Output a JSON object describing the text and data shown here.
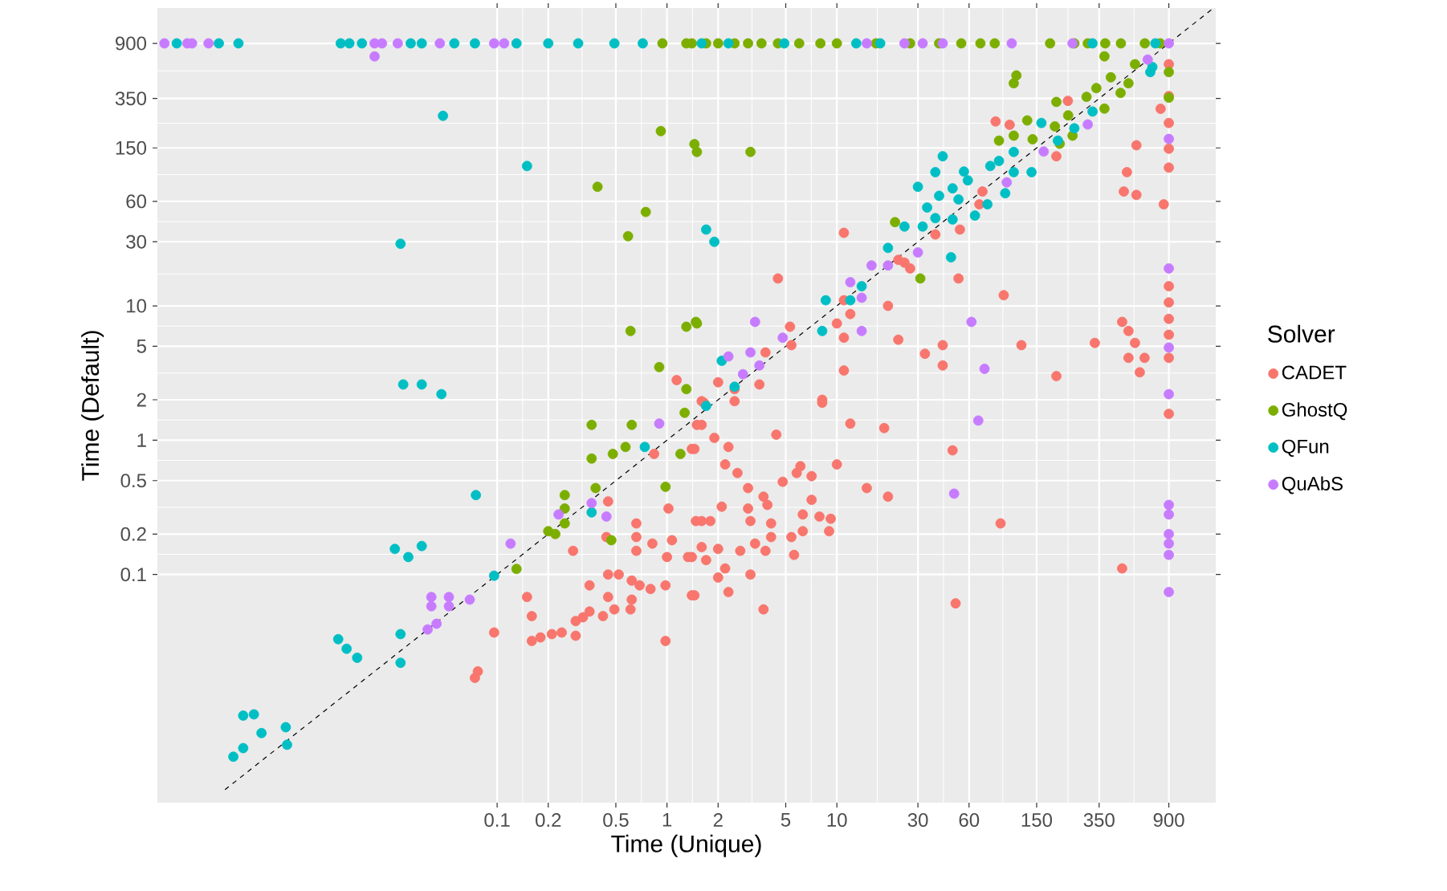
{
  "chart_data": {
    "type": "scatter",
    "xlabel": "Time (Unique)",
    "ylabel": "Time (Default)",
    "legend_title": "Solver",
    "log": "xy",
    "grid": true,
    "legend": "right",
    "marker": "circle",
    "xlim": [
      0.001,
      1700
    ],
    "ylim": [
      0.002,
      1650
    ],
    "xticks": [
      0.1,
      0.2,
      0.5,
      1,
      2,
      5,
      10,
      30,
      60,
      150,
      350,
      900
    ],
    "yticks": [
      0.1,
      0.2,
      0.5,
      1,
      2,
      5,
      10,
      30,
      60,
      150,
      350,
      900
    ],
    "series": [
      {
        "name": "CADET",
        "color": "#f8766d",
        "x": [
          900,
          900,
          805,
          900,
          900,
          900,
          580,
          510,
          489,
          580,
          840,
          229,
          196,
          86,
          104,
          11,
          38,
          53,
          72,
          69,
          23,
          27,
          52,
          4.5,
          20,
          96,
          11,
          12,
          10,
          11,
          5.3,
          5.4,
          3.8,
          23,
          42,
          33,
          42,
          122,
          330,
          196,
          11,
          8.2,
          478,
          521,
          569,
          648,
          607,
          521,
          900,
          900,
          900,
          900,
          900,
          2.0,
          2.5,
          3.5,
          1.6,
          25,
          1.5,
          0.84,
          1.4,
          1.48,
          0.45,
          1.02,
          0.44,
          0.66,
          0.66,
          0.66,
          0.82,
          0.28,
          1.07,
          1.0,
          1.33,
          0.45,
          0.52,
          0.62,
          0.69,
          0.8,
          0.98,
          0.35,
          0.45,
          0.62,
          1.4,
          0.35,
          0.42,
          0.49,
          0.61,
          0.29,
          0.32,
          0.29,
          0.24,
          0.21,
          0.18,
          0.16,
          0.98,
          0.15,
          0.16,
          0.096,
          0.077,
          0.074,
          1.65,
          1.6,
          2.5,
          8.2,
          12,
          19,
          48,
          1.9,
          2.3,
          1.45,
          4.4,
          2.2,
          2.6,
          6.1,
          5.8,
          7.1,
          10,
          3.0,
          3.7,
          4.8,
          3.9,
          3.0,
          2.1,
          7.1,
          6.3,
          15,
          20,
          1.6,
          1.8,
          3.1,
          4.1,
          7.9,
          9.2,
          9.0,
          6.3,
          5.4,
          4.1,
          3.3,
          3.8,
          2.7,
          2.0,
          1.6,
          1.4,
          1.7,
          5.6,
          3.1,
          2.2,
          2.0,
          2.3,
          1.45,
          3.7,
          92,
          478,
          50,
          900,
          1.14
        ],
        "values": [
          630,
          365,
          293,
          230,
          148,
          107,
          157,
          99,
          71,
          67,
          57,
          336,
          130,
          236,
          223,
          35,
          34,
          37,
          71,
          57,
          22,
          19,
          16,
          16,
          10,
          12,
          11,
          8.7,
          7.4,
          5.8,
          7.0,
          5.1,
          4.5,
          5.6,
          5.1,
          4.4,
          3.6,
          5.1,
          5.3,
          3.0,
          3.3,
          2.0,
          7.6,
          6.5,
          5.3,
          4.1,
          3.2,
          4.1,
          14,
          10.6,
          8.0,
          6.1,
          4.1,
          2.7,
          2.4,
          2.6,
          1.95,
          21,
          1.3,
          0.79,
          0.86,
          0.25,
          0.35,
          0.31,
          0.19,
          0.24,
          0.19,
          0.15,
          0.17,
          0.15,
          0.18,
          0.135,
          0.135,
          0.1,
          0.1,
          0.09,
          0.083,
          0.078,
          0.083,
          0.083,
          0.068,
          0.065,
          0.07,
          0.053,
          0.049,
          0.055,
          0.055,
          0.045,
          0.048,
          0.035,
          0.037,
          0.036,
          0.034,
          0.032,
          0.032,
          0.068,
          0.049,
          0.037,
          0.019,
          0.017,
          1.9,
          1.3,
          1.95,
          1.9,
          1.33,
          1.23,
          0.84,
          1.04,
          0.89,
          0.86,
          1.1,
          0.66,
          0.57,
          0.64,
          0.57,
          0.54,
          0.66,
          0.44,
          0.38,
          0.49,
          0.33,
          0.31,
          0.32,
          0.36,
          0.28,
          0.44,
          0.38,
          0.25,
          0.25,
          0.25,
          0.24,
          0.27,
          0.26,
          0.21,
          0.21,
          0.19,
          0.19,
          0.17,
          0.15,
          0.15,
          0.155,
          0.16,
          0.135,
          0.128,
          0.14,
          0.1,
          0.111,
          0.095,
          0.074,
          0.07,
          0.055,
          0.24,
          0.111,
          0.061,
          1.57,
          2.8
        ]
      },
      {
        "name": "GhostQ",
        "color": "#7cae00",
        "x": [
          0.94,
          1.3,
          1.4,
          1.7,
          2.0,
          2.5,
          3.0,
          3.6,
          4.5,
          6.0,
          8.0,
          10,
          17,
          27,
          40,
          54,
          70,
          85,
          180,
          250,
          300,
          380,
          470,
          650,
          800,
          0.92,
          1.45,
          1.5,
          3.1,
          0.39,
          0.75,
          0.59,
          0.61,
          1.3,
          1.48,
          0.9,
          1.3,
          0.36,
          0.62,
          1.27,
          0.36,
          0.48,
          0.57,
          1.2,
          0.98,
          0.25,
          0.25,
          0.38,
          0.25,
          0.2,
          0.22,
          0.47,
          0.13,
          22,
          31,
          1.5,
          90,
          110,
          132,
          196,
          230,
          244,
          295,
          337,
          410,
          468,
          376,
          521,
          569,
          376,
          114,
          110,
          900,
          900,
          142,
          192,
          205
        ],
        "values": [
          900,
          900,
          900,
          900,
          900,
          900,
          900,
          900,
          900,
          900,
          900,
          900,
          900,
          900,
          900,
          900,
          900,
          900,
          900,
          900,
          900,
          900,
          900,
          900,
          900,
          200,
          160,
          140,
          140,
          77,
          50,
          33,
          6.5,
          7.0,
          7.6,
          3.5,
          2.4,
          1.3,
          1.3,
          1.6,
          0.73,
          0.79,
          0.89,
          0.79,
          0.45,
          0.39,
          0.31,
          0.44,
          0.24,
          0.21,
          0.2,
          0.18,
          0.11,
          42,
          16,
          7.4,
          170,
          185,
          240,
          330,
          262,
          185,
          360,
          418,
          503,
          385,
          294,
          454,
          630,
          721,
          520,
          454,
          550,
          355,
          174,
          217,
          161
        ]
      },
      {
        "name": "QFun",
        "color": "#00bfc4",
        "x": [
          0.0013,
          0.0023,
          0.003,
          0.012,
          0.0135,
          0.016,
          0.031,
          0.036,
          0.056,
          0.074,
          0.13,
          0.2,
          0.3,
          0.49,
          0.72,
          1.6,
          2.3,
          4.9,
          13,
          18,
          320,
          750,
          0.048,
          0.15,
          0.027,
          0.028,
          0.036,
          0.047,
          0.075,
          0.025,
          0.03,
          0.036,
          0.096,
          0.0116,
          0.013,
          0.015,
          0.027,
          0.027,
          0.0032,
          0.0037,
          0.0041,
          0.0028,
          0.0032,
          0.0057,
          0.0058,
          42,
          30,
          38,
          56,
          59,
          48,
          34,
          40,
          52,
          32,
          38,
          48,
          65,
          77,
          47,
          25,
          20,
          80,
          90,
          110,
          140,
          110,
          98,
          160,
          200,
          250,
          320,
          700,
          720,
          12,
          14,
          8.6,
          8.2,
          2.1,
          2.5,
          1.7,
          1.9,
          0.36,
          0.74,
          1.7
        ],
        "values": [
          900,
          900,
          900,
          900,
          900,
          900,
          900,
          900,
          900,
          900,
          900,
          900,
          900,
          900,
          900,
          900,
          900,
          900,
          900,
          900,
          900,
          900,
          260,
          110,
          29,
          2.6,
          2.6,
          2.2,
          0.39,
          0.155,
          0.135,
          0.163,
          0.098,
          0.033,
          0.028,
          0.024,
          0.036,
          0.022,
          0.0089,
          0.0091,
          0.0066,
          0.0044,
          0.0051,
          0.0073,
          0.0054,
          130,
          77,
          99,
          100,
          86,
          75,
          54,
          66,
          62,
          39,
          45,
          44,
          47,
          57,
          23,
          39,
          27,
          110,
          120,
          99,
          99,
          140,
          69,
          230,
          170,
          210,
          280,
          550,
          600,
          11,
          14,
          11,
          6.5,
          3.9,
          2.5,
          37,
          30,
          0.29,
          0.89,
          1.8
        ]
      },
      {
        "name": "QuAbS",
        "color": "#c77cff",
        "x": [
          0.0011,
          0.0015,
          0.0016,
          0.002,
          0.019,
          0.021,
          0.026,
          0.046,
          0.096,
          0.11,
          15,
          25,
          32,
          42,
          107,
          244,
          900,
          0.019,
          900,
          900,
          900,
          900,
          68,
          49,
          900,
          900,
          900,
          900,
          900,
          900,
          62,
          74,
          30,
          16,
          20,
          12,
          14,
          3.3,
          4.8,
          14,
          3.1,
          2.3,
          3.5,
          2.8,
          100,
          165,
          300,
          676,
          0.9,
          0.12,
          0.36,
          0.44,
          0.23,
          0.041,
          0.052,
          0.041,
          0.052,
          0.069,
          0.044,
          0.039
        ],
        "values": [
          900,
          900,
          900,
          900,
          900,
          900,
          900,
          900,
          900,
          900,
          900,
          900,
          900,
          900,
          900,
          900,
          900,
          720,
          19,
          175,
          2.2,
          4.9,
          1.4,
          0.4,
          0.33,
          0.28,
          0.2,
          0.17,
          0.14,
          0.074,
          7.6,
          3.4,
          25,
          20,
          20,
          15,
          11.5,
          7.6,
          5.8,
          6.5,
          4.5,
          4.2,
          3.6,
          3.1,
          83,
          141,
          224,
          682,
          1.33,
          0.17,
          0.34,
          0.27,
          0.28,
          0.068,
          0.068,
          0.058,
          0.058,
          0.065,
          0.043,
          0.039
        ]
      },
      {
        "type": "line",
        "color": "#000000",
        "line_style": "dashed",
        "marker": "none",
        "x": [
          0.0025,
          1650
        ],
        "values": [
          0.0025,
          1650
        ]
      }
    ]
  }
}
